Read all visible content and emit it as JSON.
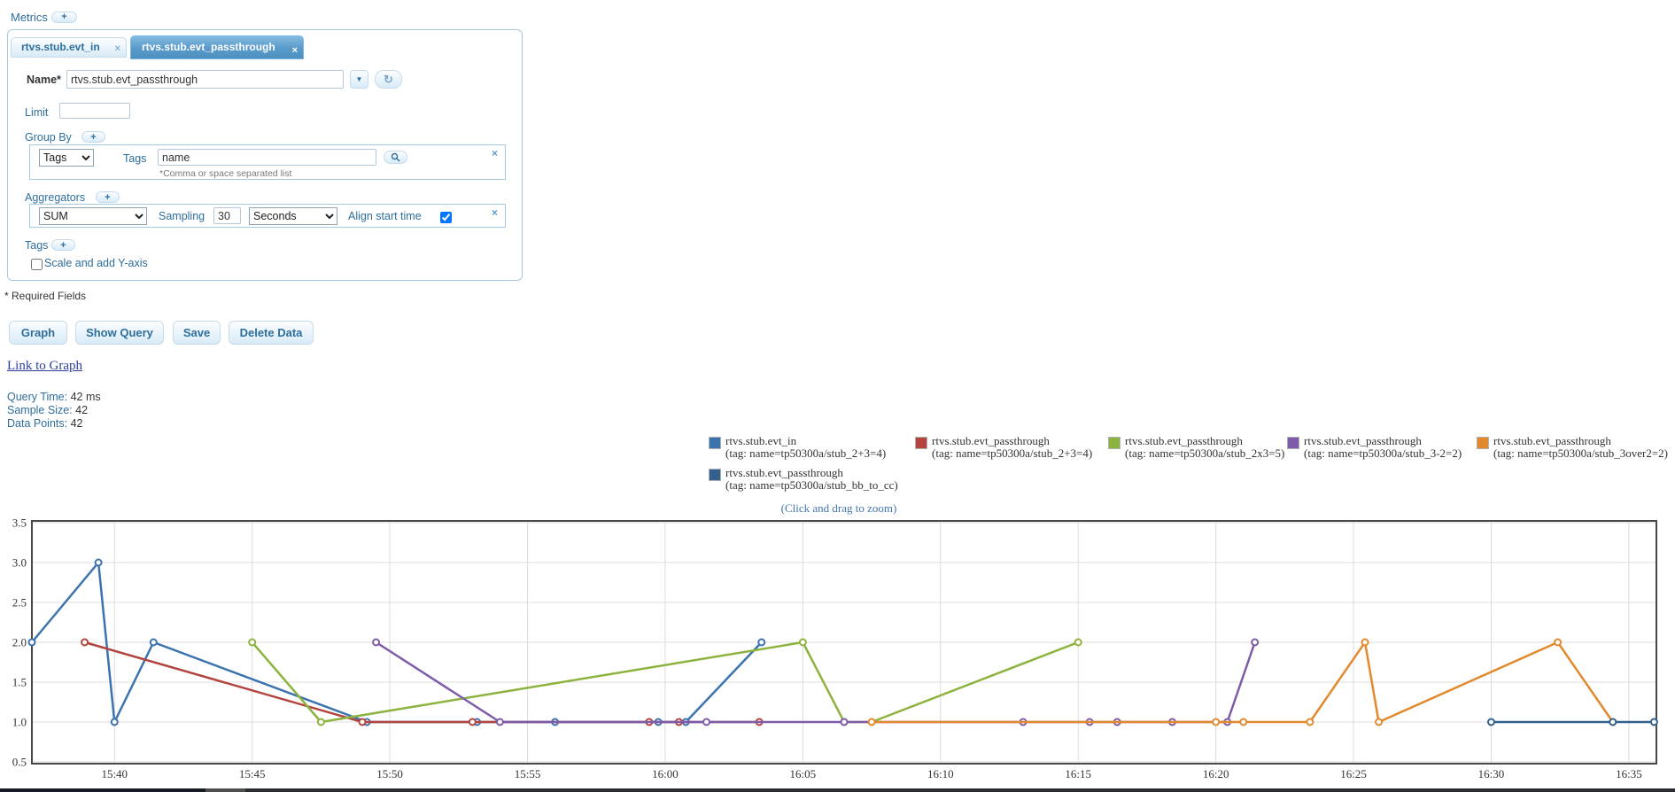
{
  "metrics_label": "Metrics",
  "metrics_add": "+",
  "tabs": [
    {
      "label": "rtvs.stub.evt_in",
      "close": "×"
    },
    {
      "label": "rtvs.stub.evt_passthrough",
      "close": "×"
    }
  ],
  "form": {
    "name_label": "Name*",
    "name_value": "rtvs.stub.evt_passthrough",
    "dropdown_arrow": "▼",
    "refresh_icon": "↻",
    "limit_label": "Limit",
    "limit_value": "",
    "group_by": {
      "label": "Group By",
      "add": "+",
      "type": "Tags",
      "tags_label": "Tags",
      "tags_value": "name",
      "hint": "*Comma or space separated list",
      "close": "×"
    },
    "aggregators": {
      "label": "Aggregators",
      "add": "+",
      "function": "SUM",
      "sampling_label": "Sampling",
      "sampling_value": "30",
      "unit": "Seconds",
      "align_label": "Align start time",
      "align_checked": true,
      "close": "×"
    },
    "tags_label": "Tags",
    "tags_add": "+",
    "scale_label": "Scale and add Y-axis",
    "scale_checked": false,
    "required_note": "* Required Fields"
  },
  "actions": {
    "graph": "Graph",
    "show_query": "Show Query",
    "save": "Save",
    "delete_data": "Delete Data"
  },
  "link_to_graph": "Link to Graph",
  "stats": [
    {
      "label": "Query Time:",
      "value": "42 ms"
    },
    {
      "label": "Sample Size:",
      "value": "42"
    },
    {
      "label": "Data Points:",
      "value": "42"
    }
  ],
  "chart_data": {
    "type": "line",
    "title": "",
    "xlabel": "",
    "ylabel": "",
    "grid": true,
    "legend_position": "top",
    "caption": "(Click and drag to zoom)",
    "xlim": [
      "15:37:00",
      "16:36:00"
    ],
    "ylim": [
      0.5,
      3.5
    ],
    "x_ticks": [
      "15:40",
      "15:45",
      "15:50",
      "15:55",
      "16:00",
      "16:05",
      "16:10",
      "16:15",
      "16:20",
      "16:25",
      "16:30",
      "16:35"
    ],
    "y_ticks": [
      3.5,
      3.0,
      2.5,
      2.0,
      1.5,
      1.0,
      0.5
    ],
    "series": [
      {
        "name": "rtvs.stub.evt_in",
        "tag": "(tag: name=tp50300a/stub_2+3=4)",
        "color": "#3b73af",
        "points": [
          [
            "15:37:00",
            2
          ],
          [
            "15:39:25",
            3
          ],
          [
            "15:40:00",
            1
          ],
          [
            "15:41:25",
            2
          ],
          [
            "15:49:10",
            1
          ],
          [
            "15:53:10",
            1
          ],
          [
            "15:56:00",
            1
          ],
          [
            "15:59:45",
            1
          ],
          [
            "16:00:45",
            1
          ],
          [
            "16:03:30",
            2
          ]
        ]
      },
      {
        "name": "rtvs.stub.evt_passthrough",
        "tag": "(tag: name=tp50300a/stub_2+3=4)",
        "color": "#b3433e",
        "points": [
          [
            "15:38:55",
            2
          ],
          [
            "15:49:00",
            1
          ],
          [
            "15:53:00",
            1
          ],
          [
            "15:59:25",
            1
          ],
          [
            "16:00:30",
            1
          ],
          [
            "16:03:25",
            1
          ]
        ]
      },
      {
        "name": "rtvs.stub.evt_passthrough",
        "tag": "(tag: name=tp50300a/stub_2x3=5)",
        "color": "#8db33f",
        "points": [
          [
            "15:45:00",
            2
          ],
          [
            "15:47:30",
            1
          ],
          [
            "16:05:00",
            2
          ],
          [
            "16:06:30",
            1
          ],
          [
            "16:07:30",
            1
          ],
          [
            "16:15:00",
            2
          ]
        ]
      },
      {
        "name": "rtvs.stub.evt_passthrough",
        "tag": "(tag: name=tp50300a/stub_3-2=2)",
        "color": "#7e5ba9",
        "points": [
          [
            "15:49:30",
            2
          ],
          [
            "15:54:00",
            1
          ],
          [
            "16:01:30",
            1
          ],
          [
            "16:06:30",
            1
          ],
          [
            "16:13:00",
            1
          ],
          [
            "16:15:25",
            1
          ],
          [
            "16:16:25",
            1
          ],
          [
            "16:18:25",
            1
          ],
          [
            "16:20:25",
            1
          ],
          [
            "16:21:25",
            2
          ]
        ]
      },
      {
        "name": "rtvs.stub.evt_passthrough",
        "tag": "(tag: name=tp50300a/stub_3over2=2)",
        "color": "#e3892d",
        "points": [
          [
            "16:07:30",
            1
          ],
          [
            "16:20:00",
            1
          ],
          [
            "16:21:00",
            1
          ],
          [
            "16:23:25",
            1
          ],
          [
            "16:25:25",
            2
          ],
          [
            "16:25:55",
            1
          ],
          [
            "16:32:25",
            2
          ],
          [
            "16:34:25",
            1
          ]
        ]
      },
      {
        "name": "rtvs.stub.evt_passthrough",
        "tag": "(tag: name=tp50300a/stub_bb_to_cc)",
        "color": "#33608c",
        "points": [
          [
            "16:30:00",
            1
          ],
          [
            "16:34:25",
            1
          ],
          [
            "16:35:55",
            1
          ]
        ]
      }
    ]
  }
}
